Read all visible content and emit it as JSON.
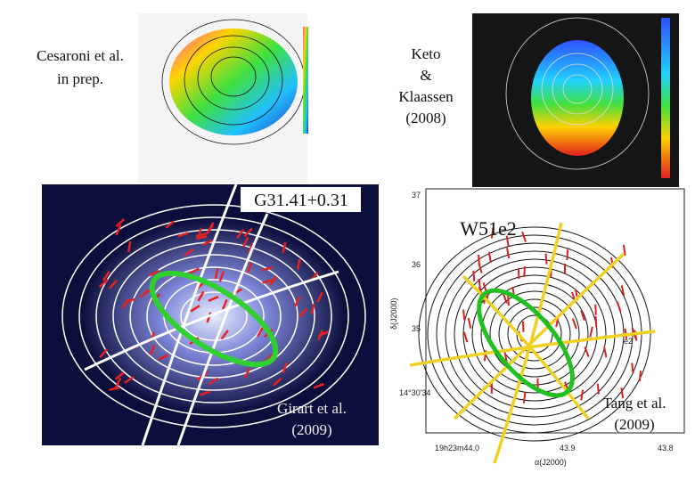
{
  "labels": {
    "cesaroni": [
      "Cesaroni et al.",
      "in prep."
    ],
    "keto": [
      "Keto",
      "&",
      "Klaassen",
      "(2008)"
    ],
    "g31": "G31.41+0.31",
    "w51": "W51e2",
    "girart": [
      "Girart et al.",
      "(2009)"
    ],
    "tang": [
      "Tang et al.",
      "(2009)"
    ]
  },
  "panel_axes": {
    "yticks": [
      "37",
      "36",
      "35",
      "14°30'34"
    ],
    "xticks": [
      "19h23m44.0",
      "43.9",
      "43.8"
    ],
    "ylabel": "δ(J2000)",
    "xlabel": "α(J2000)",
    "source": "e2"
  }
}
